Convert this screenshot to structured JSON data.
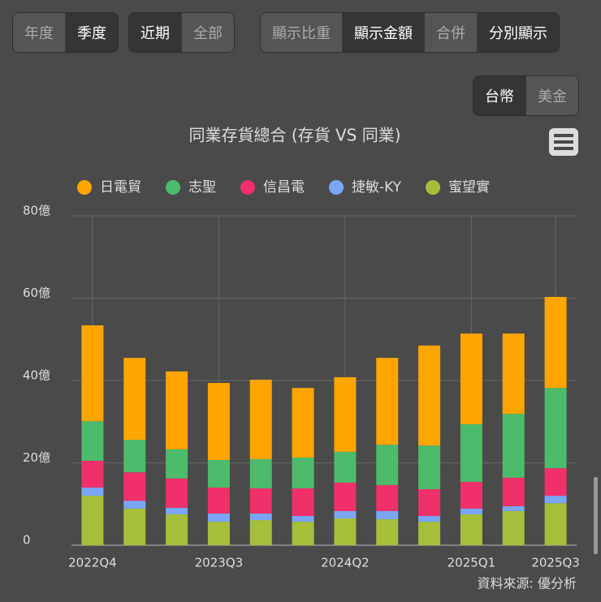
{
  "toolbar": {
    "groups": [
      {
        "buttons": [
          {
            "label": "年度"
          },
          {
            "label": "季度",
            "active": true
          }
        ]
      },
      {
        "buttons": [
          {
            "label": "近期",
            "active": true
          },
          {
            "label": "全部"
          }
        ]
      },
      {
        "buttons": [
          {
            "label": "顯示比重"
          },
          {
            "label": "顯示金額",
            "active": true
          },
          {
            "label": "合併"
          },
          {
            "label": "分別顯示",
            "active": true
          }
        ]
      },
      {
        "buttons": [
          {
            "label": "台幣",
            "active": true
          },
          {
            "label": "美金"
          }
        ]
      }
    ]
  },
  "chart_data": {
    "type": "stacked_bar",
    "title": "同業存貨總合 (存貨 VS 同業)",
    "categories": [
      "2022Q4",
      null,
      null,
      "2023Q3",
      null,
      null,
      "2024Q2",
      null,
      null,
      "2025Q1",
      null,
      "2025Q3"
    ],
    "series": [
      {
        "name": "日電貿",
        "color": "#ffa500",
        "values": [
          23.3,
          19.9,
          18.9,
          18.7,
          19.3,
          16.9,
          18.1,
          21.1,
          24.3,
          22.0,
          19.5,
          22.1
        ]
      },
      {
        "name": "志聖",
        "color": "#4cbb6c",
        "values": [
          9.6,
          7.9,
          7.1,
          6.7,
          7.1,
          7.5,
          7.5,
          9.8,
          10.6,
          14.0,
          15.5,
          19.5
        ]
      },
      {
        "name": "信昌電",
        "color": "#f0306a",
        "values": [
          6.5,
          6.9,
          7.1,
          6.3,
          6.1,
          6.7,
          6.9,
          6.3,
          6.5,
          6.5,
          6.9,
          6.7
        ]
      },
      {
        "name": "捷敏-KY",
        "color": "#7aa6f5",
        "values": [
          2.0,
          1.9,
          1.6,
          2.0,
          1.6,
          1.4,
          1.8,
          2.0,
          1.4,
          1.4,
          1.2,
          1.8
        ]
      },
      {
        "name": "蜜望實",
        "color": "#a5bf3a",
        "values": [
          12.0,
          8.9,
          7.5,
          5.7,
          6.1,
          5.7,
          6.5,
          6.3,
          5.7,
          7.5,
          8.3,
          10.2
        ]
      }
    ],
    "ylim": [
      0,
      80
    ],
    "yticks": [
      0,
      {
        "value": 20,
        "label": "20億"
      },
      {
        "value": 40,
        "label": "40億"
      },
      {
        "value": 60,
        "label": "60億"
      },
      {
        "value": 80,
        "label": "80億"
      }
    ],
    "grid": true,
    "source": "資料來源: 優分析"
  }
}
